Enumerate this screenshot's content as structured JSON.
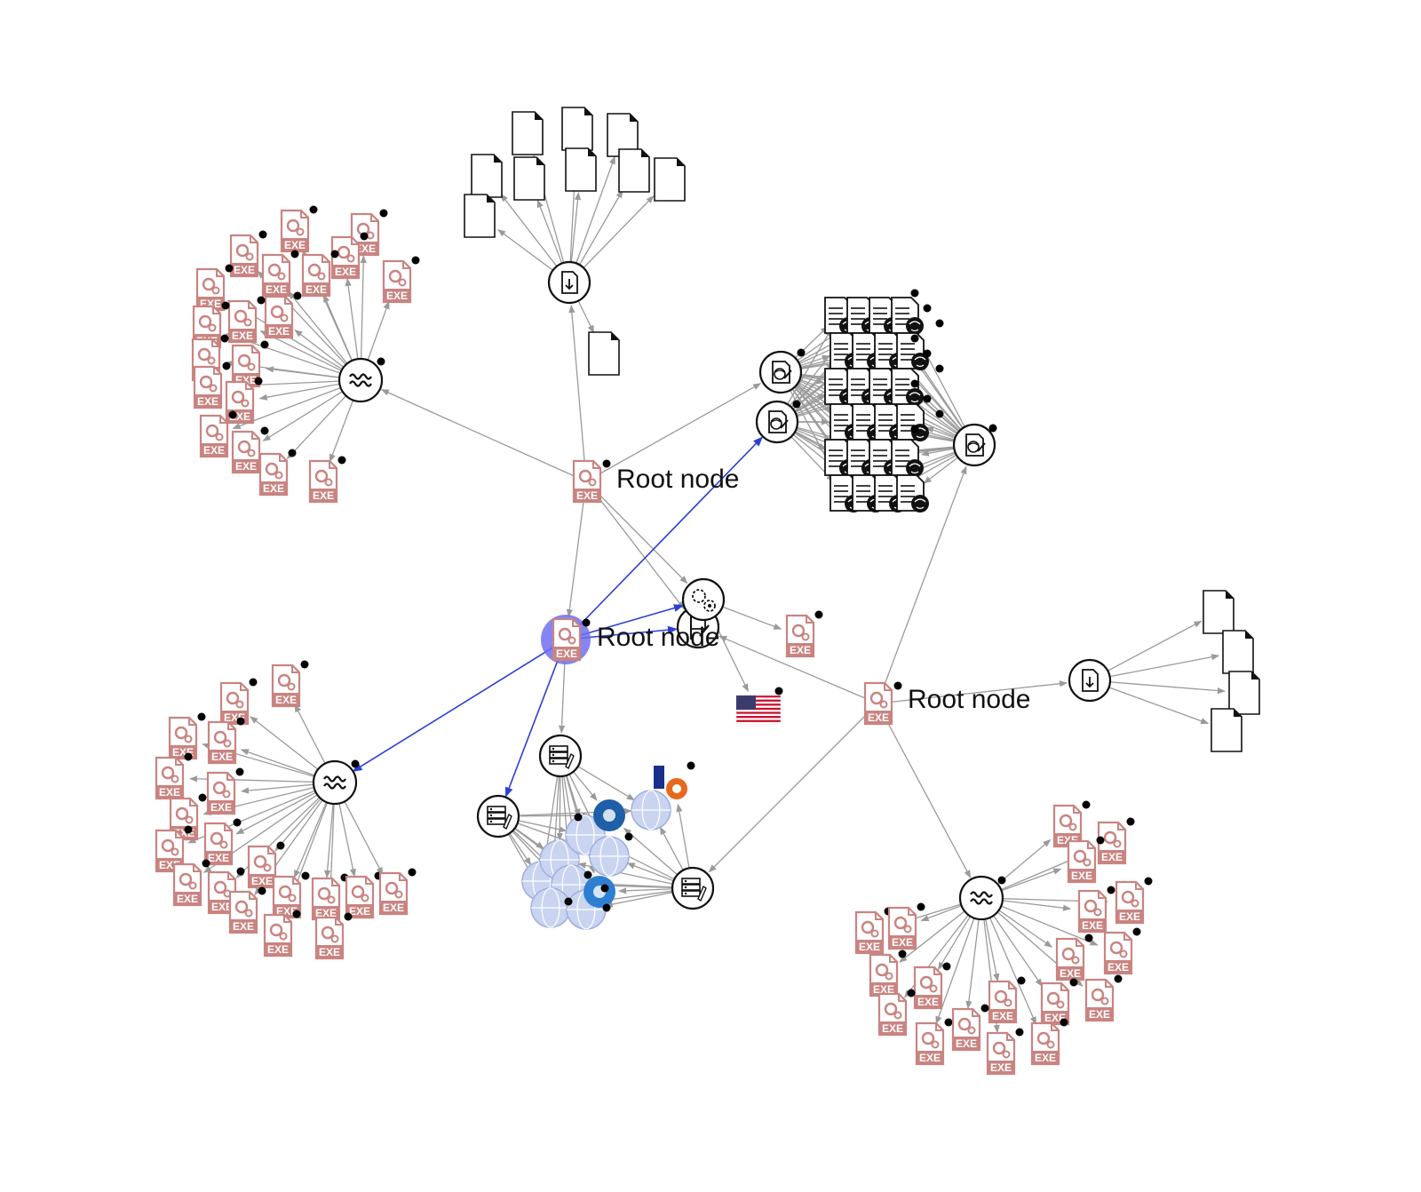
{
  "graph": {
    "root_label": "Root node",
    "exe_label": "EXE",
    "colors": {
      "exe": "#c98481",
      "edge": "#9a9a9a",
      "edge_highlight": "#2b3fd6",
      "selected_halo": "#6f6ff0",
      "node_stroke": "#111111",
      "indicator": "#000000",
      "globe": "#c9d4f0"
    },
    "hubs": [
      {
        "name": "root-exe-1",
        "icon": "exe-file-icon",
        "label": "Root node"
      },
      {
        "name": "root-exe-2-selected",
        "icon": "exe-file-icon",
        "label": "Root node",
        "selected": true
      },
      {
        "name": "root-exe-3",
        "icon": "exe-file-icon",
        "label": "Root node"
      },
      {
        "name": "download-hub-top",
        "icon": "file-download-icon"
      },
      {
        "name": "download-hub-right",
        "icon": "file-download-icon"
      },
      {
        "name": "wave-hub-top-left",
        "icon": "wave-icon"
      },
      {
        "name": "wave-hub-bottom-left",
        "icon": "wave-icon"
      },
      {
        "name": "wave-hub-bottom-right",
        "icon": "wave-icon"
      },
      {
        "name": "report-hub-1",
        "icon": "report-icon"
      },
      {
        "name": "report-hub-2",
        "icon": "report-icon"
      },
      {
        "name": "report-hub-3",
        "icon": "report-icon"
      },
      {
        "name": "settings-hub",
        "icon": "gears-icon"
      },
      {
        "name": "flag-hub",
        "icon": "flag-icon"
      },
      {
        "name": "server-hub-1",
        "icon": "server-icon"
      },
      {
        "name": "server-hub-2",
        "icon": "server-icon"
      },
      {
        "name": "server-hub-3",
        "icon": "server-icon"
      },
      {
        "name": "us-flag",
        "icon": "us-flag-icon"
      }
    ]
  }
}
